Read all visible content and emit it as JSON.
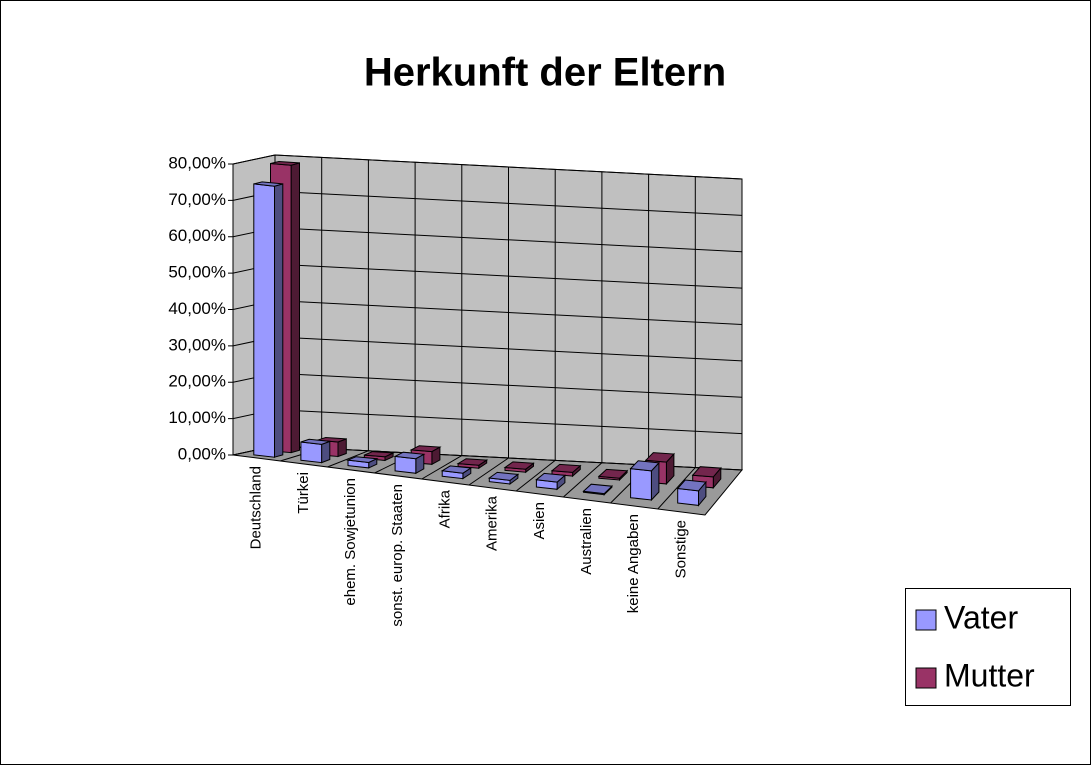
{
  "chart_data": {
    "type": "bar3d",
    "title": "Herkunft der Eltern",
    "categories": [
      "Deutschland",
      "Türkei",
      "ehem. Sowjetunion",
      "sonst. europ. Staaten",
      "Afrika",
      "Amerika",
      "Asien",
      "Australien",
      "keine Angaben",
      "Sonstige"
    ],
    "series": [
      {
        "name": "Vater",
        "color": "#9999ff",
        "values": [
          74.5,
          5,
          1.5,
          4,
          1.5,
          1,
          2,
          0.3,
          8,
          4
        ]
      },
      {
        "name": "Mutter",
        "color": "#993366",
        "values": [
          79,
          4,
          1,
          3.5,
          0.8,
          0.8,
          1,
          0.5,
          6,
          3
        ]
      }
    ],
    "ylim": [
      0,
      80
    ],
    "yticks": [
      {
        "value": 0,
        "label": "0,00%"
      },
      {
        "value": 10,
        "label": "10,00%"
      },
      {
        "value": 20,
        "label": "20,00%"
      },
      {
        "value": 30,
        "label": "30,00%"
      },
      {
        "value": 40,
        "label": "40,00%"
      },
      {
        "value": 50,
        "label": "50,00%"
      },
      {
        "value": 60,
        "label": "60,00%"
      },
      {
        "value": 70,
        "label": "70,00%"
      },
      {
        "value": 80,
        "label": "80,00%"
      }
    ],
    "grid": true,
    "legend": "right"
  }
}
